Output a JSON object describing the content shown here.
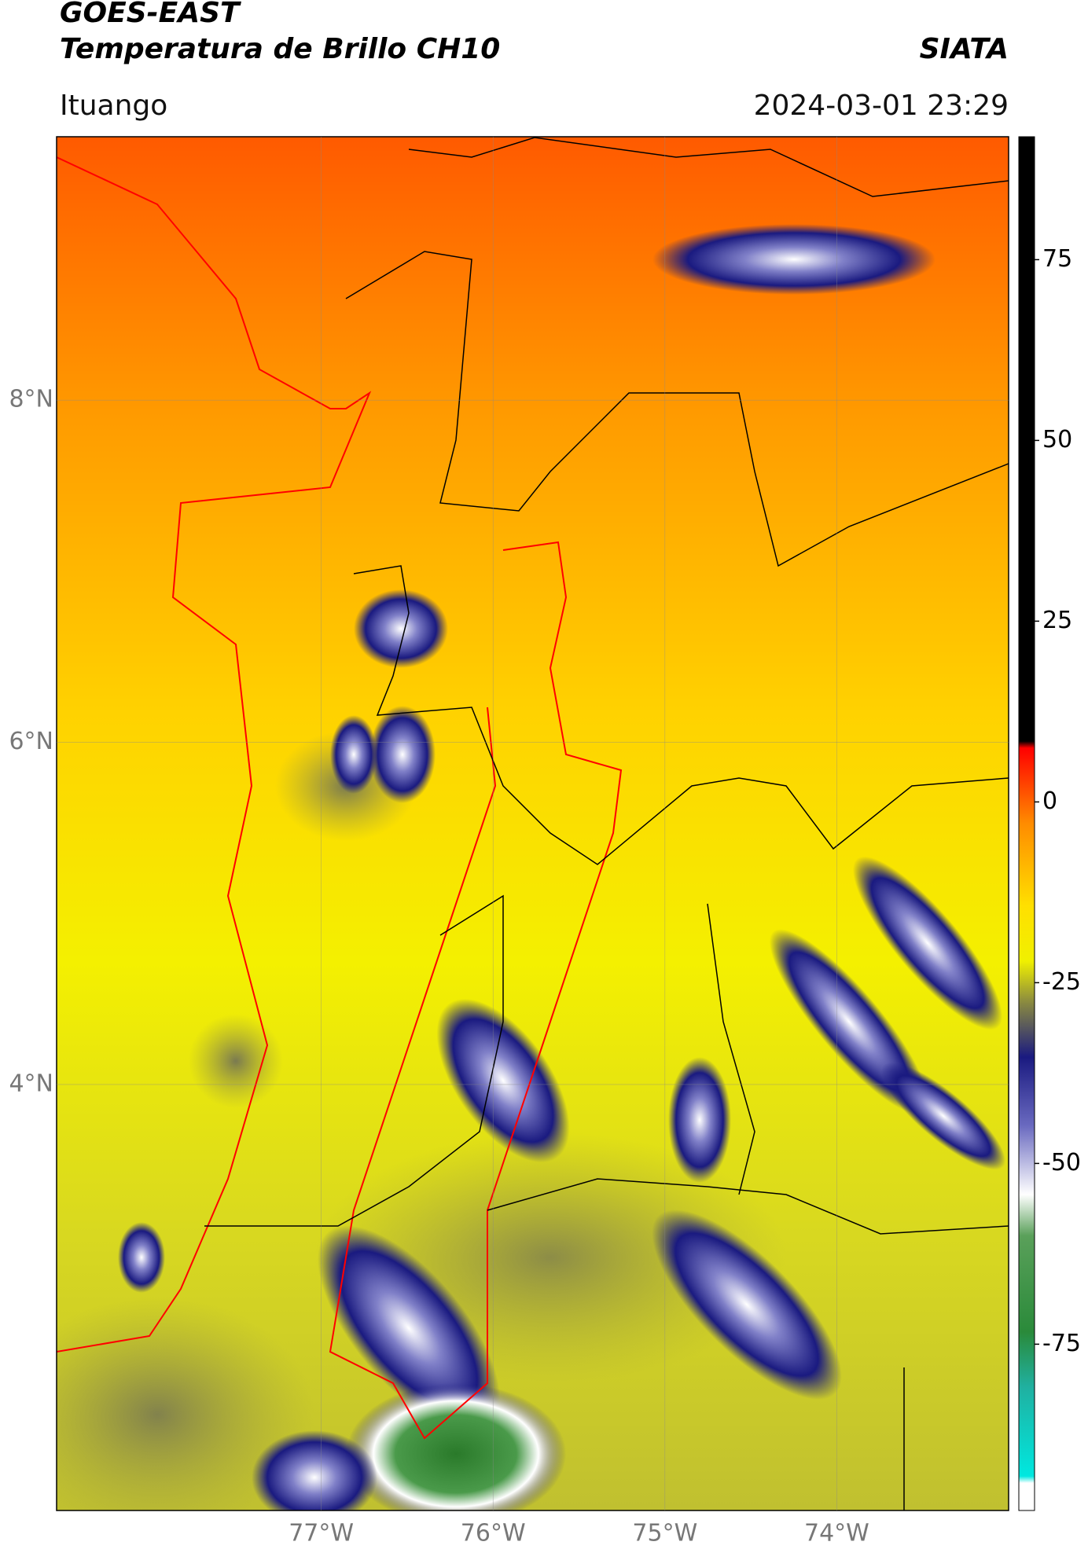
{
  "header": {
    "title_line1": "GOES-EAST",
    "title_line2": "Temperatura de Brillo CH10",
    "source": "SIATA",
    "region": "Ituango",
    "timestamp": "2024-03-01 23:29"
  },
  "map": {
    "xlim": [
      -78.54,
      -73.0
    ],
    "ylim": [
      1.51,
      9.54
    ],
    "xticks": [
      {
        "value": -77,
        "label": "77°W"
      },
      {
        "value": -76,
        "label": "76°W"
      },
      {
        "value": -75,
        "label": "75°W"
      },
      {
        "value": -74,
        "label": "74°W"
      }
    ],
    "yticks": [
      {
        "value": 8,
        "label": "8°N"
      },
      {
        "value": 6,
        "label": "6°N"
      },
      {
        "value": 4,
        "label": "4°N"
      }
    ]
  },
  "colorbar": {
    "lim": [
      -98,
      92
    ],
    "ticks": [
      -75,
      -50,
      -25,
      0,
      25,
      50,
      75
    ]
  }
}
